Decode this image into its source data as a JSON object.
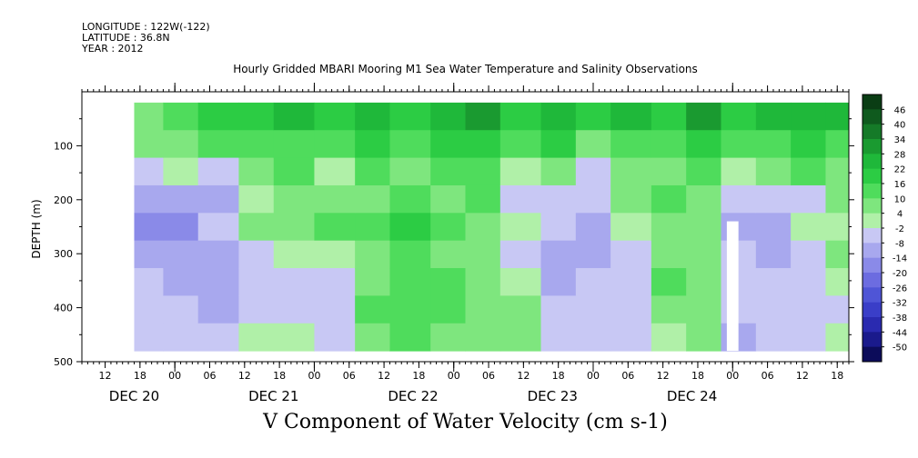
{
  "header": {
    "longitude": "LONGITUDE : 122W(-122)",
    "latitude": "LATITUDE : 36.8N",
    "year": "YEAR : 2012"
  },
  "chart_data": {
    "type": "heatmap",
    "title": "Hourly Gridded MBARI Mooring M1 Sea Water Temperature and Salinity Observations",
    "xlabel": "V Component of Water Velocity (cm s-1)",
    "ylabel": "DEPTH (m)",
    "ylim": [
      500,
      0
    ],
    "y_ticks": [
      100,
      200,
      300,
      400,
      500
    ],
    "y_tick_labels": [
      "100",
      "200",
      "300",
      "400",
      "500"
    ],
    "x_range_hours": [
      0,
      132
    ],
    "x_tick_labels": [
      "12",
      "18",
      "00",
      "06",
      "12",
      "18",
      "00",
      "06",
      "12",
      "18",
      "00",
      "06",
      "12",
      "18",
      "00",
      "06",
      "12",
      "18",
      "00",
      "06",
      "12",
      "18"
    ],
    "date_labels": [
      "DEC 20",
      "DEC 21",
      "DEC 22",
      "DEC 23",
      "DEC 24"
    ],
    "colorbar_levels": [
      "46",
      "40",
      "34",
      "28",
      "22",
      "16",
      "10",
      "4",
      "-2",
      "-8",
      "-14",
      "-20",
      "-26",
      "-32",
      "-38",
      "-44",
      "-50"
    ],
    "colorbar_colors": [
      "#0a3d14",
      "#0f5a1e",
      "#157a28",
      "#1a9a30",
      "#1fb83a",
      "#2ccc44",
      "#4fdc5c",
      "#7ee67e",
      "#b0f0a8",
      "#c8c8f4",
      "#a8a8ee",
      "#8a8ae8",
      "#6c6ce0",
      "#4f55d6",
      "#3a3ec8",
      "#2a2ab0",
      "#1a1a8c",
      "#0c0c5a"
    ],
    "data_start_hour": 9,
    "data_end_hour": 132,
    "data_max_depth": 480,
    "time_bands": [
      {
        "h0": 9,
        "h1": 14,
        "v": [
          4,
          4,
          -4,
          -14,
          -20,
          -14,
          -8,
          -4,
          -8
        ]
      },
      {
        "h0": 14,
        "h1": 20,
        "v": [
          10,
          4,
          -2,
          -14,
          -20,
          -14,
          -14,
          -8,
          -8
        ]
      },
      {
        "h0": 20,
        "h1": 27,
        "v": [
          16,
          10,
          -8,
          -14,
          -8,
          -14,
          -14,
          -14,
          -8
        ]
      },
      {
        "h0": 27,
        "h1": 33,
        "v": [
          16,
          10,
          4,
          -2,
          4,
          -8,
          -8,
          -8,
          -2
        ]
      },
      {
        "h0": 33,
        "h1": 40,
        "v": [
          22,
          10,
          10,
          4,
          4,
          -2,
          -8,
          -8,
          -2
        ]
      },
      {
        "h0": 40,
        "h1": 47,
        "v": [
          16,
          10,
          -2,
          4,
          10,
          -2,
          -8,
          -8,
          -8
        ]
      },
      {
        "h0": 47,
        "h1": 53,
        "v": [
          22,
          16,
          10,
          4,
          10,
          4,
          4,
          10,
          4
        ]
      },
      {
        "h0": 53,
        "h1": 60,
        "v": [
          16,
          10,
          4,
          10,
          16,
          10,
          10,
          10,
          10
        ]
      },
      {
        "h0": 60,
        "h1": 66,
        "v": [
          22,
          16,
          10,
          4,
          10,
          4,
          10,
          10,
          4
        ]
      },
      {
        "h0": 66,
        "h1": 72,
        "v": [
          28,
          16,
          10,
          10,
          4,
          4,
          4,
          4,
          4
        ]
      },
      {
        "h0": 72,
        "h1": 79,
        "v": [
          16,
          10,
          -2,
          -8,
          -2,
          -8,
          -2,
          4,
          4
        ]
      },
      {
        "h0": 79,
        "h1": 85,
        "v": [
          22,
          16,
          4,
          -8,
          -8,
          -14,
          -14,
          -8,
          -8
        ]
      },
      {
        "h0": 85,
        "h1": 91,
        "v": [
          16,
          4,
          -8,
          -8,
          -14,
          -14,
          -8,
          -8,
          -8
        ]
      },
      {
        "h0": 91,
        "h1": 98,
        "v": [
          22,
          10,
          4,
          4,
          -2,
          -8,
          -8,
          -8,
          -8
        ]
      },
      {
        "h0": 98,
        "h1": 104,
        "v": [
          16,
          10,
          4,
          10,
          4,
          4,
          10,
          4,
          -2
        ]
      },
      {
        "h0": 104,
        "h1": 110,
        "v": [
          28,
          16,
          10,
          4,
          4,
          4,
          4,
          4,
          4
        ]
      },
      {
        "h0": 110,
        "h1": 116,
        "v": [
          16,
          10,
          -2,
          -8,
          -14,
          -8,
          -8,
          -8,
          -14
        ]
      },
      {
        "h0": 116,
        "h1": 122,
        "v": [
          22,
          10,
          4,
          -8,
          -14,
          -14,
          -8,
          -8,
          -8
        ]
      },
      {
        "h0": 122,
        "h1": 128,
        "v": [
          22,
          16,
          10,
          -8,
          -2,
          -8,
          -8,
          -8,
          -8
        ]
      },
      {
        "h0": 128,
        "h1": 132,
        "v": [
          22,
          10,
          4,
          4,
          -2,
          4,
          -2,
          -8,
          -2
        ]
      }
    ],
    "missing_blocks": [
      {
        "h0": 111,
        "h1": 113,
        "d0": 240,
        "d1": 480
      }
    ]
  }
}
